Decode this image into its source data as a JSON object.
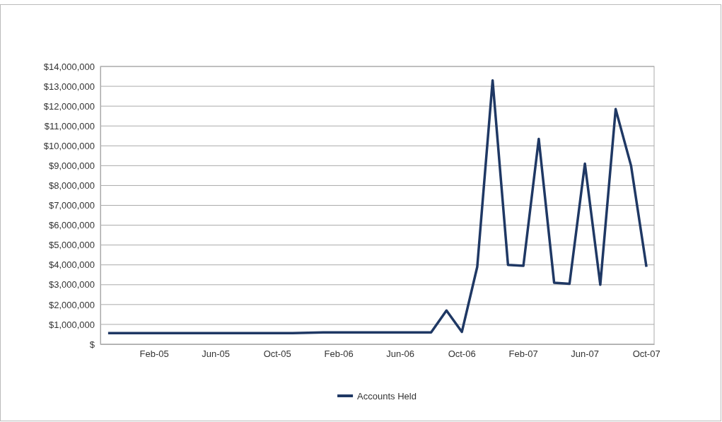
{
  "chart_data": {
    "type": "line",
    "categories": [
      null,
      null,
      null,
      "Feb-05",
      null,
      null,
      null,
      "Jun-05",
      null,
      null,
      null,
      "Oct-05",
      null,
      null,
      null,
      "Feb-06",
      null,
      null,
      null,
      "Jun-06",
      null,
      null,
      null,
      "Oct-06",
      null,
      null,
      null,
      "Feb-07",
      null,
      null,
      null,
      "Jun-07",
      null,
      null,
      null,
      "Oct-07"
    ],
    "series": [
      {
        "name": "Accounts Held",
        "color": "#1f3864",
        "values": [
          560000,
          560000,
          560000,
          560000,
          560000,
          560000,
          560000,
          560000,
          560000,
          560000,
          560000,
          560000,
          560000,
          580000,
          600000,
          600000,
          600000,
          600000,
          600000,
          600000,
          600000,
          600000,
          1700000,
          620000,
          3900000,
          13300000,
          4000000,
          3950000,
          10350000,
          3100000,
          3050000,
          9100000,
          3000000,
          11850000,
          9000000,
          3900000
        ]
      }
    ],
    "ylim": [
      0,
      14000000
    ],
    "yticks": [
      {
        "value": 0,
        "label": "$"
      },
      {
        "value": 1000000,
        "label": "$1,000,000"
      },
      {
        "value": 2000000,
        "label": "$2,000,000"
      },
      {
        "value": 3000000,
        "label": "$3,000,000"
      },
      {
        "value": 4000000,
        "label": "$4,000,000"
      },
      {
        "value": 5000000,
        "label": "$5,000,000"
      },
      {
        "value": 6000000,
        "label": "$6,000,000"
      },
      {
        "value": 7000000,
        "label": "$7,000,000"
      },
      {
        "value": 8000000,
        "label": "$8,000,000"
      },
      {
        "value": 9000000,
        "label": "$9,000,000"
      },
      {
        "value": 10000000,
        "label": "$10,000,000"
      },
      {
        "value": 11000000,
        "label": "$11,000,000"
      },
      {
        "value": 12000000,
        "label": "$12,000,000"
      },
      {
        "value": 13000000,
        "label": "$13,000,000"
      },
      {
        "value": 14000000,
        "label": "$14,000,000"
      }
    ],
    "grid": "y",
    "legend": "bottom",
    "marker": "none",
    "line_style": "solid"
  }
}
